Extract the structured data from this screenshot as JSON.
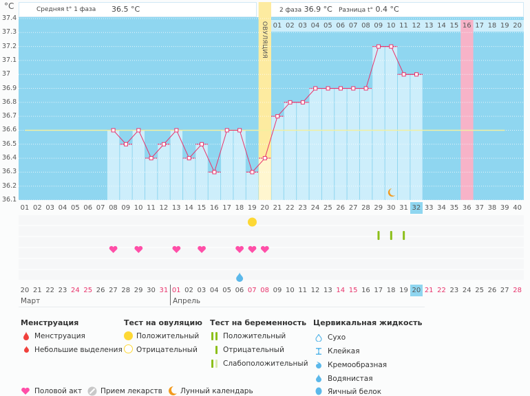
{
  "header": {
    "unit": "°C",
    "phase1_label": "Средняя t° 1 фаза",
    "phase1_value": "36.5 °C",
    "phase2_label": "2 фаза",
    "phase2_value": "36.9 °C",
    "diff_label": "Разница t°",
    "diff_value": "0.4 °C",
    "ovulation_label": "ОВУЛЯЦИЯ"
  },
  "colors": {
    "plot_bg": "#8fd6f0",
    "bar_fill": "#cdeefb",
    "line": "#e8336b",
    "ovulation": "#fdeba0",
    "highlight_pink": "#f7b3c8",
    "coverline": "#f2f0a0",
    "heart": "#ff4fa8",
    "ovulation_test": "#fdd835",
    "pregnancy_test": "#8cbf1a",
    "cervical": "#5bb8ea",
    "menstruation": "#f0413c",
    "moon": "#f29a1e"
  },
  "chart_data": {
    "type": "line",
    "title": "",
    "xlabel": "",
    "ylabel": "°C",
    "ylim": [
      36.1,
      37.4
    ],
    "yticks": [
      "37.4",
      "37.3",
      "37.2",
      "37.1",
      "37",
      "36.9",
      "36.8",
      "36.7",
      "36.6",
      "36.5",
      "36.4",
      "36.3",
      "36.2",
      "36.1"
    ],
    "cycle_days": [
      "01",
      "02",
      "03",
      "04",
      "05",
      "06",
      "07",
      "08",
      "09",
      "10",
      "11",
      "12",
      "13",
      "14",
      "15",
      "16",
      "17",
      "18",
      "19",
      "20",
      "21",
      "22",
      "23",
      "24",
      "25",
      "26",
      "27",
      "28",
      "29",
      "30",
      "31",
      "32",
      "33",
      "34",
      "35",
      "36",
      "37",
      "38",
      "39",
      "40"
    ],
    "current_cycle_day": "32",
    "dpo_labels": [
      "01",
      "02",
      "03",
      "04",
      "05",
      "06",
      "07",
      "08",
      "09",
      "10",
      "11",
      "12",
      "13",
      "14",
      "15",
      "16",
      "17",
      "18",
      "19",
      "20"
    ],
    "dpo_highlight": "16",
    "ovulation_day": 20,
    "coverline": 36.6,
    "series": [
      {
        "name": "Температура",
        "x": [
          8,
          9,
          10,
          11,
          12,
          13,
          14,
          15,
          16,
          17,
          18,
          19,
          20,
          21,
          22,
          23,
          24,
          25,
          26,
          27,
          28,
          29,
          30,
          31,
          32
        ],
        "values": [
          36.6,
          36.5,
          36.6,
          36.4,
          36.5,
          36.6,
          36.4,
          36.5,
          36.3,
          36.6,
          36.6,
          36.3,
          36.4,
          36.7,
          36.8,
          36.8,
          36.9,
          36.9,
          36.9,
          36.9,
          36.9,
          37.2,
          37.2,
          37.0,
          37.0
        ]
      }
    ],
    "markers": {
      "moon_day": 30,
      "ovulation_test_positive_day": 19,
      "pregnancy_test_negative_days": [
        29,
        30,
        31
      ],
      "intercourse_days": [
        8,
        10,
        13,
        15,
        18,
        19,
        20
      ],
      "cervical_watery_day": 18
    }
  },
  "calendar": {
    "dates": [
      "20",
      "21",
      "22",
      "23",
      "24",
      "25",
      "26",
      "27",
      "28",
      "29",
      "30",
      "31",
      "01",
      "02",
      "03",
      "04",
      "05",
      "06",
      "07",
      "08",
      "09",
      "10",
      "11",
      "12",
      "13",
      "14",
      "15",
      "16",
      "17",
      "18",
      "19",
      "20",
      "21",
      "22",
      "23",
      "24",
      "25",
      "26",
      "27",
      "28"
    ],
    "red_dates_idx": [
      4,
      5,
      11,
      12,
      18,
      19,
      25,
      26,
      32,
      33,
      39
    ],
    "today_idx": 31,
    "month1": "Март",
    "month2": "Апрель"
  },
  "legend": {
    "menstruation": {
      "title": "Менструация",
      "items": [
        "Менструация",
        "Небольшие выделения"
      ]
    },
    "ovulation_test": {
      "title": "Тест на овуляцию",
      "items": [
        "Положительный",
        "Отрицательный"
      ]
    },
    "pregnancy_test": {
      "title": "Тест на беременность",
      "items": [
        "Положительный",
        "Отрицательный",
        "Слабоположительный"
      ]
    },
    "cervical": {
      "title": "Цервикальная жидкость",
      "items": [
        "Сухо",
        "Клейкая",
        "Кремообразная",
        "Водянистая",
        "Яичный белок"
      ]
    },
    "misc": [
      "Половой акт",
      "Прием лекарств",
      "Лунный календарь"
    ]
  }
}
